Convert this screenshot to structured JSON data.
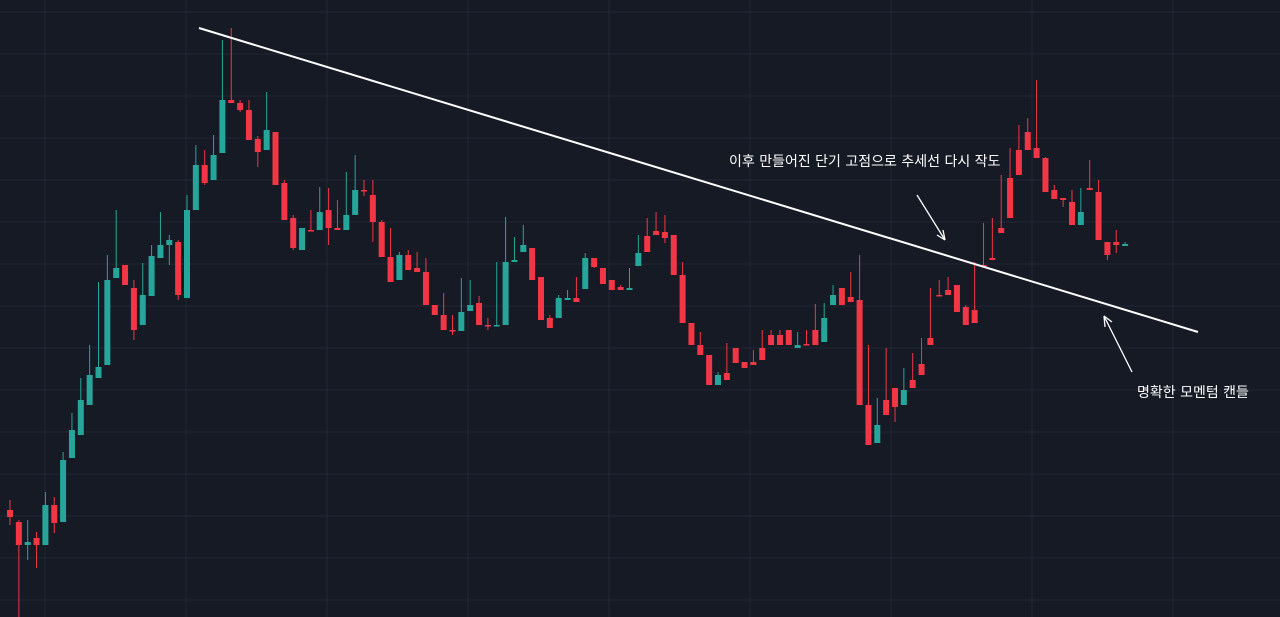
{
  "chart_data": {
    "type": "candlestick",
    "title": "",
    "xlabel": "",
    "ylabel": "",
    "ylim": [
      0,
      617
    ],
    "grid": true,
    "colors": {
      "background": "#161a25",
      "grid": "#232734",
      "up": "#26a69a",
      "down": "#f23645",
      "annotation": "#ffffff"
    },
    "candles": [
      [
        510,
        525,
        500,
        517
      ],
      [
        522,
        630,
        520,
        545
      ],
      [
        545,
        560,
        520,
        542
      ],
      [
        538,
        568,
        532,
        545
      ],
      [
        545,
        510,
        492,
        505
      ],
      [
        505,
        533,
        497,
        523
      ],
      [
        522,
        485,
        452,
        460
      ],
      [
        458,
        442,
        413,
        430
      ],
      [
        435,
        410,
        378,
        400
      ],
      [
        405,
        380,
        345,
        375
      ],
      [
        378,
        360,
        282,
        367
      ],
      [
        365,
        300,
        255,
        280
      ],
      [
        278,
        262,
        210,
        268
      ],
      [
        265,
        283,
        265,
        285
      ],
      [
        288,
        340,
        280,
        330
      ],
      [
        325,
        295,
        263,
        295
      ],
      [
        296,
        258,
        245,
        256
      ],
      [
        258,
        212,
        213,
        245
      ],
      [
        245,
        265,
        235,
        240
      ],
      [
        242,
        300,
        240,
        295
      ],
      [
        298,
        230,
        195,
        210
      ],
      [
        210,
        175,
        145,
        165
      ],
      [
        165,
        185,
        150,
        183
      ],
      [
        180,
        155,
        135,
        155
      ],
      [
        153,
        45,
        40,
        100
      ],
      [
        100,
        45,
        28,
        103
      ],
      [
        103,
        112,
        100,
        110
      ],
      [
        110,
        137,
        100,
        140
      ],
      [
        139,
        167,
        136,
        152
      ],
      [
        150,
        136,
        92,
        130
      ],
      [
        132,
        185,
        135,
        185
      ],
      [
        183,
        220,
        180,
        220
      ],
      [
        218,
        250,
        215,
        248
      ],
      [
        250,
        250,
        228,
        228
      ],
      [
        230,
        210,
        228,
        230
      ],
      [
        230,
        187,
        227,
        212
      ],
      [
        210,
        245,
        188,
        228
      ],
      [
        228,
        213,
        200,
        230
      ],
      [
        230,
        172,
        175,
        215
      ],
      [
        215,
        172,
        155,
        190
      ],
      [
        190,
        196,
        180,
        190
      ],
      [
        195,
        242,
        180,
        222
      ],
      [
        222,
        233,
        220,
        257
      ],
      [
        257,
        280,
        228,
        282
      ],
      [
        280,
        252,
        252,
        255
      ],
      [
        255,
        268,
        250,
        270
      ],
      [
        268,
        252,
        257,
        272
      ],
      [
        272,
        280,
        258,
        305
      ],
      [
        305,
        312,
        305,
        315
      ],
      [
        315,
        318,
        293,
        330
      ],
      [
        330,
        335,
        315,
        330
      ],
      [
        331,
        315,
        278,
        312
      ],
      [
        311,
        280,
        287,
        305
      ],
      [
        303,
        298,
        296,
        325
      ],
      [
        325,
        330,
        318,
        326
      ],
      [
        326,
        262,
        262,
        325
      ],
      [
        325,
        218,
        217,
        262
      ],
      [
        262,
        237,
        248,
        260
      ],
      [
        252,
        230,
        225,
        245
      ],
      [
        248,
        258,
        253,
        280
      ],
      [
        277,
        318,
        318,
        320
      ],
      [
        318,
        325,
        315,
        328
      ],
      [
        318,
        300,
        295,
        298
      ],
      [
        300,
        297,
        290,
        298
      ],
      [
        298,
        277,
        290,
        302
      ],
      [
        289,
        253,
        253,
        258
      ],
      [
        258,
        268,
        265,
        267
      ],
      [
        268,
        270,
        281,
        284
      ],
      [
        280,
        285,
        280,
        290
      ],
      [
        287,
        288,
        285,
        290
      ],
      [
        290,
        268,
        272,
        288
      ],
      [
        266,
        235,
        237,
        253
      ],
      [
        236,
        243,
        218,
        252
      ],
      [
        231,
        212,
        230,
        235
      ],
      [
        232,
        243,
        215,
        238
      ],
      [
        235,
        255,
        248,
        275
      ],
      [
        275,
        262,
        262,
        323
      ],
      [
        323,
        325,
        325,
        345
      ],
      [
        345,
        333,
        332,
        355
      ],
      [
        355,
        358,
        358,
        385
      ],
      [
        385,
        385,
        372,
        375
      ],
      [
        373,
        343,
        352,
        380
      ],
      [
        348,
        360,
        355,
        363
      ],
      [
        362,
        363,
        362,
        368
      ],
      [
        362,
        350,
        350,
        365
      ],
      [
        348,
        335,
        330,
        360
      ],
      [
        335,
        332,
        330,
        345
      ],
      [
        335,
        332,
        330,
        345
      ],
      [
        330,
        335,
        332,
        345
      ],
      [
        348,
        335,
        332,
        345
      ],
      [
        344,
        332,
        330,
        345
      ],
      [
        330,
        308,
        304,
        345
      ],
      [
        342,
        308,
        303,
        318
      ],
      [
        305,
        285,
        288,
        295
      ],
      [
        288,
        293,
        295,
        305
      ],
      [
        297,
        298,
        272,
        302
      ],
      [
        300,
        255,
        258,
        405
      ],
      [
        405,
        350,
        345,
        445
      ],
      [
        443,
        400,
        398,
        425
      ],
      [
        400,
        365,
        348,
        415
      ],
      [
        388,
        422,
        410,
        407
      ],
      [
        405,
        380,
        368,
        390
      ],
      [
        380,
        365,
        353,
        388
      ],
      [
        364,
        338,
        340,
        375
      ],
      [
        338,
        292,
        288,
        345
      ],
      [
        295,
        280,
        282,
        295
      ],
      [
        290,
        277,
        278,
        295
      ],
      [
        285,
        290,
        290,
        312
      ],
      [
        307,
        313,
        305,
        325
      ],
      [
        310,
        262,
        262,
        323
      ],
      [
        265,
        223,
        230,
        267
      ],
      [
        258,
        228,
        218,
        260
      ],
      [
        228,
        175,
        178,
        233
      ],
      [
        178,
        148,
        148,
        218
      ],
      [
        150,
        128,
        125,
        175
      ],
      [
        132,
        118,
        125,
        150
      ],
      [
        148,
        135,
        80,
        158
      ],
      [
        158,
        190,
        157,
        192
      ],
      [
        190,
        193,
        185,
        199
      ],
      [
        198,
        207,
        200,
        200
      ],
      [
        202,
        224,
        190,
        225
      ],
      [
        225,
        188,
        192,
        212
      ],
      [
        188,
        186,
        160,
        190
      ],
      [
        192,
        238,
        180,
        240
      ],
      [
        242,
        260,
        250,
        255
      ],
      [
        242,
        253,
        230,
        245
      ],
      [
        246,
        242,
        242,
        244
      ]
    ],
    "trendline": {
      "from": [
        199,
        28
      ],
      "to": [
        1198,
        332
      ]
    },
    "annotations": [
      {
        "text": "이후 만들어진 단기 고점으로 추세선 다시 작도"
      },
      {
        "text": "명확한 모멘텀 캔들"
      }
    ]
  }
}
